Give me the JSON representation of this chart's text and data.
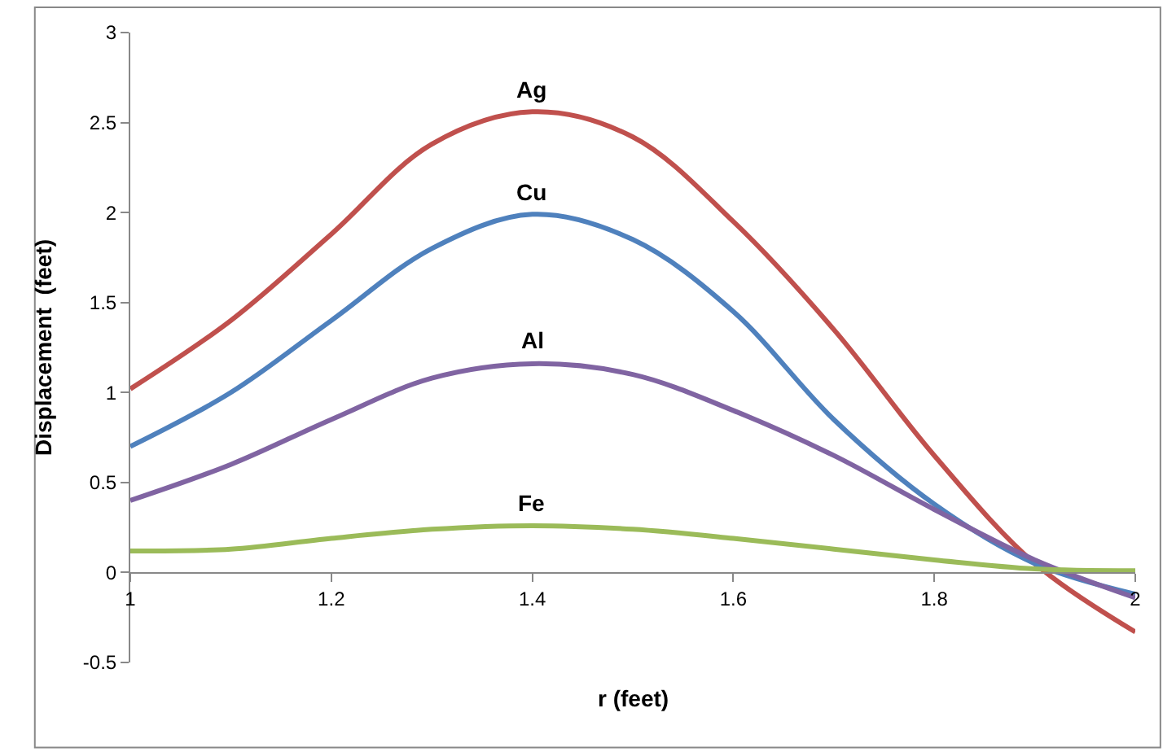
{
  "chart_data": {
    "type": "line",
    "xlabel": "r (feet)",
    "ylabel": "Displacement  (feet)",
    "x": [
      1,
      1.1,
      1.2,
      1.3,
      1.4,
      1.5,
      1.6,
      1.7,
      1.8,
      1.9,
      2
    ],
    "series": [
      {
        "name": "Ag",
        "color": "#c0504d",
        "values": [
          1.02,
          1.4,
          1.88,
          2.38,
          2.56,
          2.42,
          1.95,
          1.35,
          0.65,
          0.05,
          -0.33
        ]
      },
      {
        "name": "Cu",
        "color": "#4f81bd",
        "values": [
          0.7,
          1.0,
          1.4,
          1.8,
          1.99,
          1.85,
          1.45,
          0.85,
          0.38,
          0.05,
          -0.12
        ]
      },
      {
        "name": "Al",
        "color": "#8064a2",
        "values": [
          0.4,
          0.6,
          0.85,
          1.08,
          1.16,
          1.1,
          0.9,
          0.65,
          0.35,
          0.07,
          -0.14
        ]
      },
      {
        "name": "Fe",
        "color": "#9bbb59",
        "values": [
          0.12,
          0.13,
          0.19,
          0.24,
          0.26,
          0.24,
          0.19,
          0.13,
          0.07,
          0.02,
          0.01
        ]
      }
    ],
    "xlim": [
      1,
      2
    ],
    "xticks": [
      1,
      1.2,
      1.4,
      1.6,
      1.8,
      2
    ],
    "ylim": [
      -0.5,
      3
    ],
    "yticks": [
      -0.5,
      0,
      0.5,
      1,
      1.5,
      2,
      2.5,
      3
    ],
    "legend": false,
    "marker": "none",
    "line_style": "solid"
  }
}
